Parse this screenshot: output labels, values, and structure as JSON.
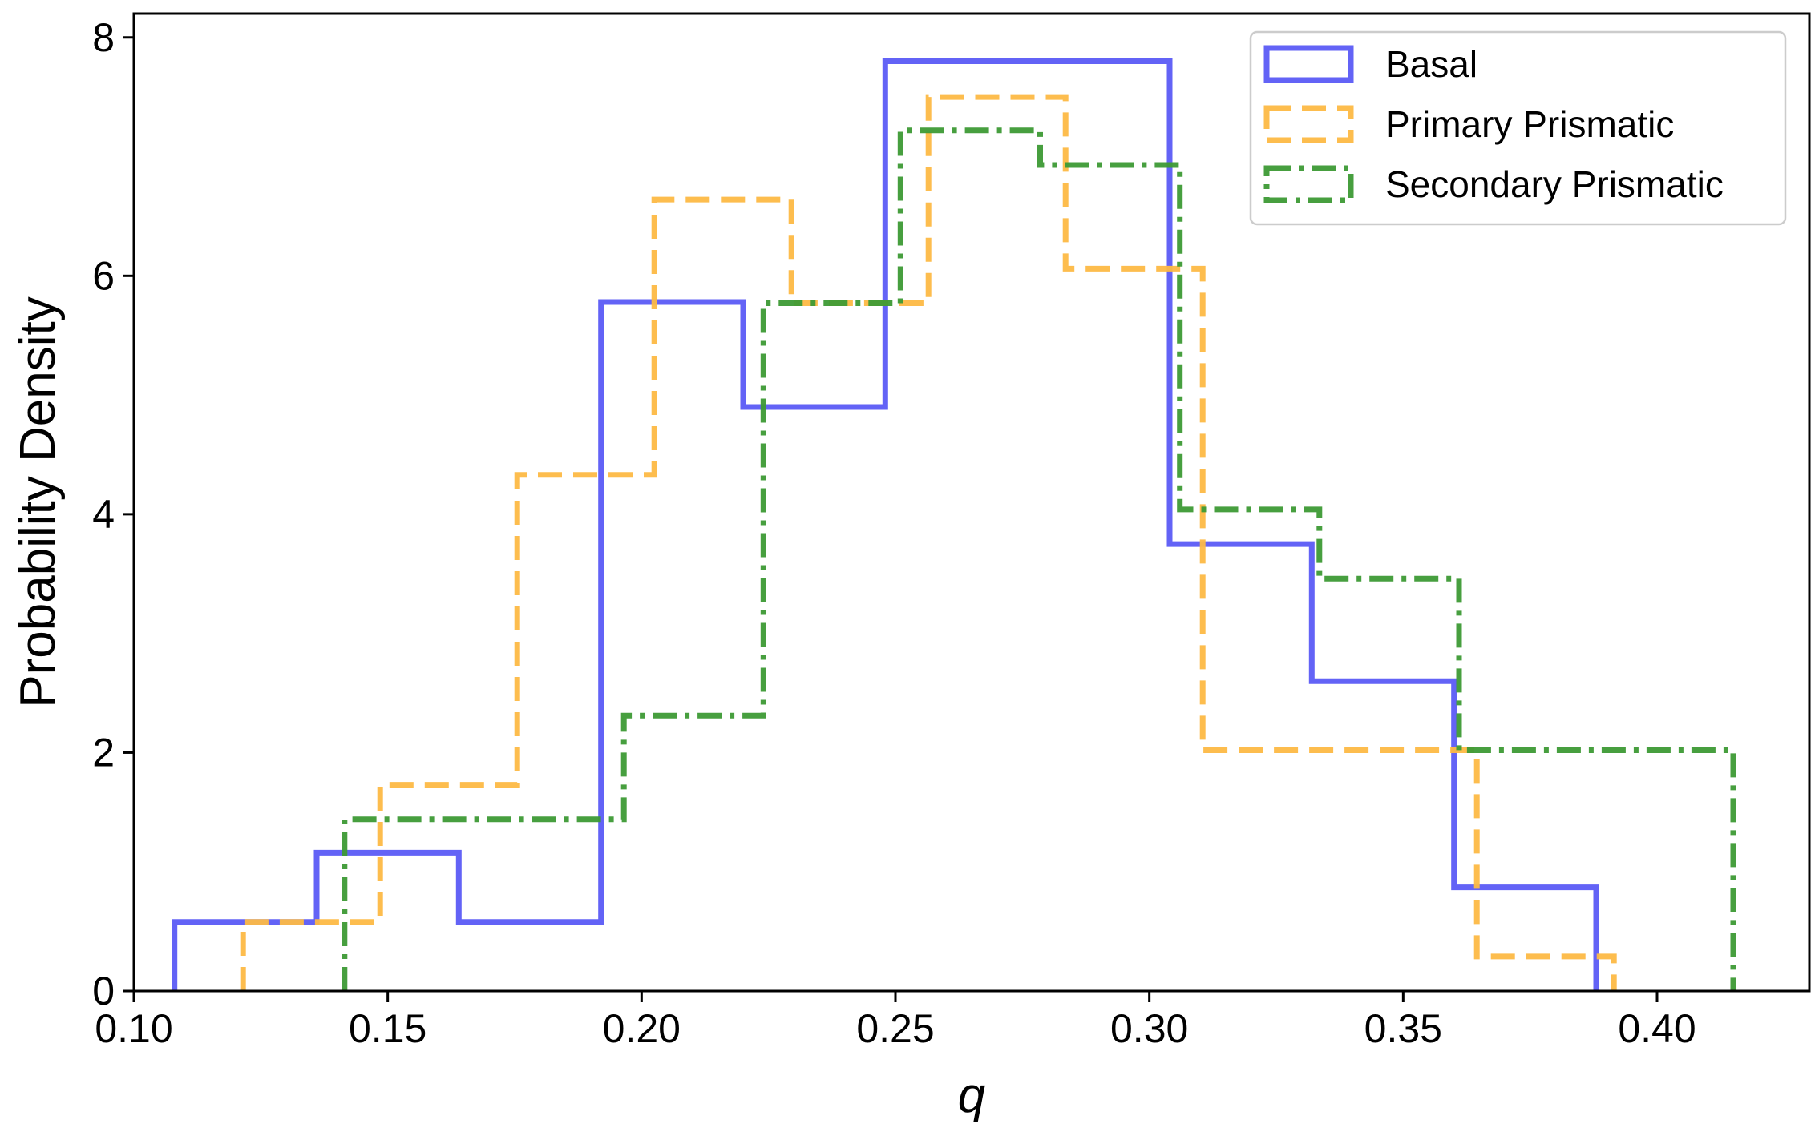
{
  "chart_data": {
    "type": "histogram-step",
    "xlabel": "q",
    "ylabel": "Probability Density",
    "xlim": [
      0.1,
      0.43
    ],
    "ylim": [
      0,
      8.2
    ],
    "xticks": [
      0.1,
      0.15,
      0.2,
      0.25,
      0.3,
      0.35,
      0.4
    ],
    "xtick_labels": [
      "0.10",
      "0.15",
      "0.20",
      "0.25",
      "0.30",
      "0.35",
      "0.40"
    ],
    "yticks": [
      0,
      2,
      4,
      6,
      8
    ],
    "ytick_labels": [
      "0",
      "2",
      "4",
      "6",
      "8"
    ],
    "legend_position": "top-right",
    "series": [
      {
        "name": "Basal",
        "color": "#5b5bf5",
        "style": "solid",
        "edges": [
          0.108,
          0.136,
          0.164,
          0.192,
          0.22,
          0.248,
          0.276,
          0.304,
          0.332,
          0.36,
          0.388
        ],
        "values": [
          0.58,
          1.16,
          0.58,
          5.78,
          4.9,
          7.8,
          7.8,
          3.75,
          2.6,
          0.87
        ]
      },
      {
        "name": "Primary Prismatic",
        "color": "#fdb945",
        "style": "dashed",
        "edges": [
          0.1215,
          0.1485,
          0.1755,
          0.2025,
          0.2295,
          0.2565,
          0.2835,
          0.3105,
          0.3375,
          0.3645,
          0.3915
        ],
        "values": [
          0.58,
          1.73,
          4.33,
          6.64,
          5.77,
          7.5,
          6.06,
          2.02,
          2.02,
          0.29
        ]
      },
      {
        "name": "Secondary Prismatic",
        "color": "#3d9a35",
        "style": "dashdot",
        "edges": [
          0.1415,
          0.169,
          0.1965,
          0.224,
          0.251,
          0.2785,
          0.306,
          0.3335,
          0.361,
          0.388,
          0.415
        ],
        "values": [
          1.44,
          1.44,
          2.31,
          5.77,
          7.22,
          6.93,
          4.04,
          3.46,
          2.02,
          2.02
        ]
      }
    ]
  }
}
